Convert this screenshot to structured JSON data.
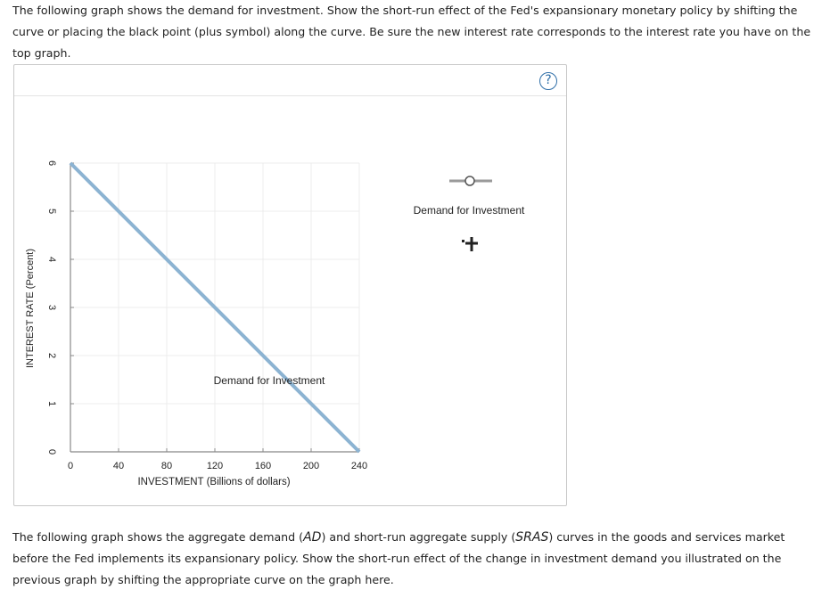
{
  "instructions": {
    "top": "The following graph shows the demand for investment. Show the short-run effect of the Fed's expansionary monetary policy by shifting the curve or placing the black point (plus symbol) along the curve. Be sure the new interest rate corresponds to the interest rate you have on the top graph.",
    "bottom_part1": "The following graph shows the aggregate demand (",
    "ad": "AD",
    "bottom_part2": ") and short-run aggregate supply (",
    "sras": "SRAS",
    "bottom_part3": ") curves in the goods and services market before the Fed implements its expansionary policy. Show the short-run effect of the change in investment demand you illustrated on the previous graph by shifting the appropriate curve on the graph here."
  },
  "help_button": {
    "label": "?"
  },
  "colors": {
    "curve": "#8cb3d2",
    "grid": "#ececec",
    "axis": "#888888",
    "help": "#2f6fa8"
  },
  "legend": {
    "curve_tool_label": "Demand for Investment",
    "point_tool_icon": "plus-point-icon"
  },
  "chart_data": {
    "type": "line",
    "xlabel": "INVESTMENT (Billions of dollars)",
    "ylabel": "INTEREST RATE (Percent)",
    "xlim": [
      0,
      240
    ],
    "ylim": [
      0,
      6
    ],
    "xticks": [
      0,
      40,
      80,
      120,
      160,
      200,
      240
    ],
    "yticks": [
      0,
      1,
      2,
      3,
      4,
      5,
      6
    ],
    "grid": true,
    "series": [
      {
        "name": "Demand for Investment",
        "points": [
          [
            0,
            6
          ],
          [
            240,
            0
          ]
        ]
      }
    ],
    "curve_label": "Demand for Investment",
    "curve_label_anchor": [
      160,
      1.5
    ]
  }
}
